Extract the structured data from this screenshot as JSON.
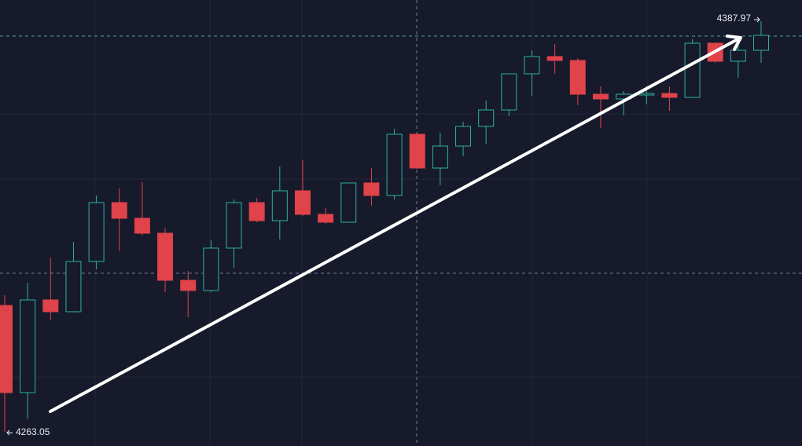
{
  "chart_data": {
    "type": "candlestick",
    "up_color": "#2fb0a2",
    "down_color": "#e0434a",
    "background": "#161a2b",
    "ylim": [
      4258.75,
      4394.42
    ],
    "max_marker": 4387.97,
    "min_marker": 4263.05,
    "open": [
      4301.51,
      4274.99,
      4303.18,
      4299.6,
      4314.88,
      4332.8,
      4328.02,
      4323.48,
      4309.15,
      4306.05,
      4318.95,
      4332.8,
      4327.3,
      4336.38,
      4329.21,
      4326.82,
      4338.77,
      4334.95,
      4353.58,
      4343.3,
      4349.99,
      4355.96,
      4360.98,
      4371.97,
      4377.22,
      4376.03,
      4365.76,
      4364.32,
      4365.52,
      4365.99,
      4364.8,
      4381.28,
      4375.79,
      4379.13
    ],
    "high": [
      4304.61,
      4308.43,
      4316.08,
      4320.85,
      4334.95,
      4337.1,
      4339.01,
      4325.15,
      4312.02,
      4321.33,
      4333.75,
      4334.23,
      4343.78,
      4345.69,
      4331.12,
      4338.77,
      4343.3,
      4355.25,
      4353.82,
      4354.05,
      4357.4,
      4363.85,
      4371.97,
      4379.13,
      4381.04,
      4376.74,
      4368.15,
      4366.71,
      4368.15,
      4368.15,
      4382.48,
      4381.52,
      4381.28,
      4387.97
    ],
    "low": [
      4263.05,
      4267.11,
      4296.97,
      4299.36,
      4312.49,
      4317.99,
      4322.76,
      4305.57,
      4297.92,
      4305.57,
      4312.97,
      4326.82,
      4321.57,
      4328.74,
      4326.35,
      4326.82,
      4331.84,
      4333.75,
      4343.06,
      4338.05,
      4346.89,
      4350.71,
      4359.07,
      4365.28,
      4371.97,
      4362.41,
      4355.49,
      4359.31,
      4362.65,
      4360.74,
      4364.8,
      4375.31,
      4370.77,
      4375.31
    ],
    "close": [
      4274.99,
      4303.18,
      4299.6,
      4314.88,
      4332.8,
      4328.02,
      4323.48,
      4309.15,
      4306.05,
      4318.95,
      4332.8,
      4327.3,
      4336.38,
      4329.21,
      4326.82,
      4338.77,
      4334.95,
      4353.58,
      4343.3,
      4349.99,
      4355.96,
      4360.98,
      4371.97,
      4377.22,
      4376.03,
      4365.76,
      4364.32,
      4365.76,
      4365.99,
      4364.8,
      4381.28,
      4375.79,
      4379.13,
      4383.67
    ]
  }
}
